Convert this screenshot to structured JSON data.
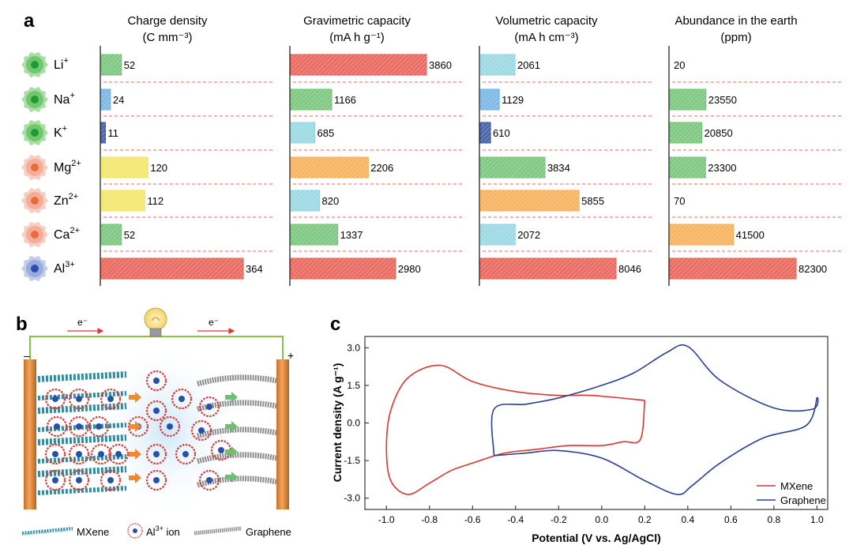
{
  "panel_labels": {
    "a": "a",
    "b": "b",
    "c": "c"
  },
  "colors": {
    "blue": "#6aaee3",
    "navy": "#2f4d99",
    "green": "#6cc070",
    "cyan": "#8fd3df",
    "yellow": "#f2e35a",
    "orange": "#f6a94a",
    "red": "#e8554b",
    "cv_mxene": "#e0352e",
    "cv_graphene": "#283f97",
    "divider": "#e86a5a"
  },
  "ions": [
    {
      "base": "Li",
      "sup": "+",
      "glow": "#63c25e",
      "core": "#1f9a35"
    },
    {
      "base": "Na",
      "sup": "+",
      "glow": "#63c25e",
      "core": "#1f9a35"
    },
    {
      "base": "K",
      "sup": "+",
      "glow": "#63c25e",
      "core": "#1f9a35"
    },
    {
      "base": "Mg",
      "sup": "2+",
      "glow": "#f2a58f",
      "core": "#ec6b35"
    },
    {
      "base": "Zn",
      "sup": "2+",
      "glow": "#f2a58f",
      "core": "#ec6b35"
    },
    {
      "base": "Ca",
      "sup": "2+",
      "glow": "#f2a58f",
      "core": "#ec6b35"
    },
    {
      "base": "Al",
      "sup": "3+",
      "glow": "#8ea4db",
      "core": "#2b4ea8"
    }
  ],
  "chart_data": [
    {
      "type": "bar",
      "title": "Charge density",
      "unit": "(C mm⁻³)",
      "categories": [
        "Li+",
        "Na+",
        "K+",
        "Mg2+",
        "Zn2+",
        "Ca2+",
        "Al3+"
      ],
      "values": [
        52,
        24,
        11,
        120,
        112,
        52,
        364
      ],
      "labels": [
        "52",
        "24",
        "11",
        "120",
        "112",
        "52",
        "364"
      ],
      "bar_colors": [
        "green",
        "blue",
        "navy",
        "yellow",
        "yellow",
        "green",
        "red"
      ],
      "xlim": [
        0,
        364
      ]
    },
    {
      "type": "bar",
      "title": "Gravimetric capacity",
      "unit": "(mA h g⁻¹)",
      "categories": [
        "Li+",
        "Na+",
        "K+",
        "Mg2+",
        "Zn2+",
        "Ca2+",
        "Al3+"
      ],
      "values": [
        3860,
        1166,
        685,
        2206,
        820,
        1337,
        2980
      ],
      "labels": [
        "3860",
        "1166",
        "685",
        "2206",
        "820",
        "1337",
        "2980"
      ],
      "bar_colors": [
        "red",
        "green",
        "cyan",
        "orange",
        "cyan",
        "green",
        "red"
      ],
      "xlim": [
        0,
        3860
      ]
    },
    {
      "type": "bar",
      "title": "Volumetric capacity",
      "unit": "(mA h cm⁻³)",
      "categories": [
        "Li+",
        "Na+",
        "K+",
        "Mg2+",
        "Zn2+",
        "Ca2+",
        "Al3+"
      ],
      "values": [
        2061,
        1129,
        610,
        3834,
        5855,
        2072,
        8046
      ],
      "labels": [
        "2061",
        "1129",
        "610",
        "3834",
        "5855",
        "2072",
        "8046"
      ],
      "bar_colors": [
        "cyan",
        "blue",
        "navy",
        "green",
        "orange",
        "cyan",
        "red"
      ],
      "xlim": [
        0,
        8046
      ]
    },
    {
      "type": "bar",
      "title": "Abundance in the earth",
      "unit": "(ppm)",
      "categories": [
        "Li+",
        "Na+",
        "K+",
        "Mg2+",
        "Zn2+",
        "Ca2+",
        "Al3+"
      ],
      "values": [
        20,
        23550,
        20850,
        23300,
        70,
        41500,
        82300
      ],
      "labels": [
        "20",
        "23550",
        "20850",
        "23300",
        "70",
        "41500",
        "82300"
      ],
      "bar_colors": [
        "green",
        "green",
        "green",
        "green",
        "green",
        "orange",
        "red"
      ],
      "xlim": [
        0,
        82300
      ]
    },
    {
      "type": "line",
      "xlabel": "Potential (V vs. Ag/AgCl)",
      "ylabel": "Current density (A g⁻¹)",
      "xlim": [
        -1.1,
        1.05
      ],
      "ylim": [
        -3.45,
        3.45
      ],
      "xticks": [
        -1.0,
        -0.8,
        -0.6,
        -0.4,
        -0.2,
        0.0,
        0.2,
        0.4,
        0.6,
        0.8,
        1.0
      ],
      "xtick_labels": [
        "-1.0",
        "-0.8",
        "-0.6",
        "-0.4",
        "-0.2",
        "0.0",
        "0.2",
        "0.4",
        "0.6",
        "0.8",
        "1.0"
      ],
      "yticks": [
        3.0,
        1.5,
        0.0,
        -1.5,
        -3.0
      ],
      "ytick_labels": [
        "3.0",
        "1.5",
        "0.0",
        "-1.5",
        "-3.0"
      ],
      "legend": "bottom-right",
      "series": [
        {
          "name": "MXene",
          "color": "cv_mxene",
          "x": [
            0.2,
            -0.05,
            -0.2,
            -0.4,
            -0.6,
            -0.75,
            -0.9,
            -0.98,
            -1.0,
            -0.98,
            -0.9,
            -0.8,
            -0.7,
            -0.6,
            -0.45,
            -0.3,
            -0.15,
            0.0,
            0.1,
            0.18,
            0.2
          ],
          "y": [
            0.9,
            1.1,
            1.1,
            1.25,
            1.65,
            2.3,
            1.8,
            0.5,
            -1.0,
            -2.3,
            -2.85,
            -2.4,
            -1.9,
            -1.6,
            -1.2,
            -1.05,
            -0.9,
            -0.9,
            -0.75,
            -0.65,
            0.9
          ]
        },
        {
          "name": "Graphene",
          "color": "cv_graphene",
          "x": [
            -0.5,
            -0.35,
            -0.2,
            0.0,
            0.2,
            0.35,
            0.42,
            0.55,
            0.75,
            0.95,
            1.0,
            0.98,
            0.8,
            0.55,
            0.4,
            0.3,
            0.15,
            0.0,
            -0.2,
            -0.35,
            -0.5,
            -0.5
          ],
          "y": [
            -1.3,
            -1.2,
            -1.1,
            -1.4,
            -2.3,
            -2.85,
            -2.5,
            -1.6,
            -0.6,
            -0.1,
            1.0,
            0.55,
            0.6,
            1.7,
            3.05,
            2.8,
            2.0,
            1.5,
            1.0,
            0.75,
            0.55,
            -1.3
          ]
        }
      ]
    }
  ],
  "schematic": {
    "electron_left": "e⁻",
    "electron_right": "e⁻",
    "minus_sign": "–",
    "plus_sign": "+",
    "legend": [
      {
        "label": "MXene"
      },
      {
        "label_base": "Al",
        "label_sup": "3+",
        "label_tail": " ion"
      },
      {
        "label": "Graphene"
      }
    ]
  }
}
